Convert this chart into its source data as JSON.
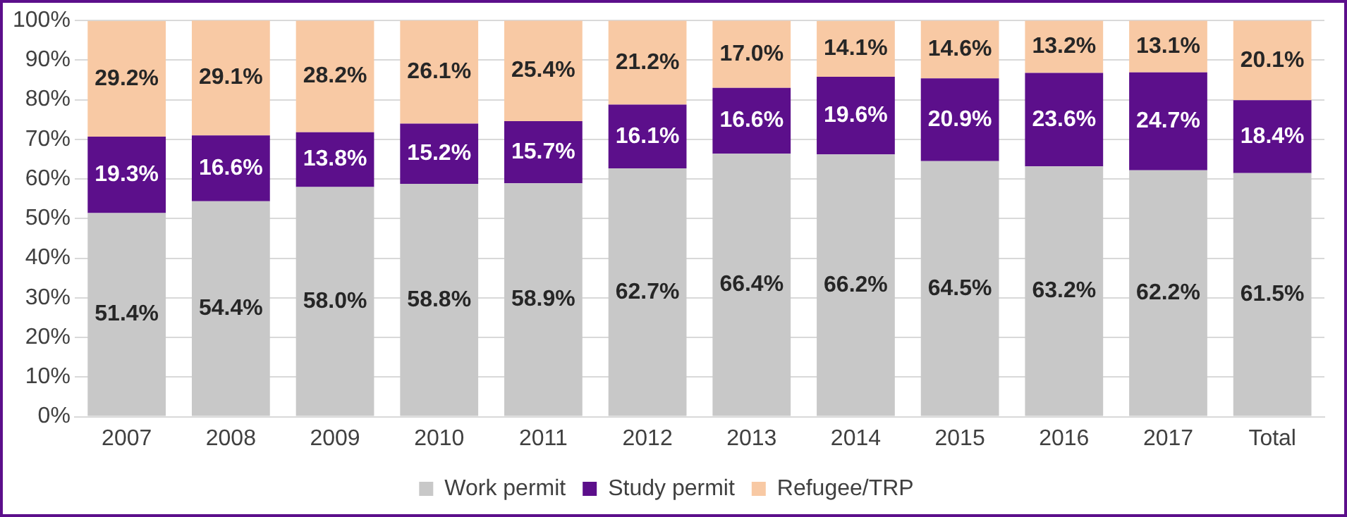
{
  "chart_data": {
    "type": "bar",
    "stacked": true,
    "categories": [
      "2007",
      "2008",
      "2009",
      "2010",
      "2011",
      "2012",
      "2013",
      "2014",
      "2015",
      "2016",
      "2017",
      "Total"
    ],
    "series": [
      {
        "name": "Work permit",
        "color": "#c8c8c8",
        "values": [
          51.4,
          54.4,
          58.0,
          58.8,
          58.9,
          62.7,
          66.4,
          66.2,
          64.5,
          63.2,
          62.2,
          61.5
        ],
        "value_labels": [
          "51.4%",
          "54.4%",
          "58.0%",
          "58.8%",
          "58.9%",
          "62.7%",
          "66.4%",
          "66.2%",
          "64.5%",
          "63.2%",
          "62.2%",
          "61.5%"
        ]
      },
      {
        "name": "Study permit",
        "color": "#5c0f8b",
        "values": [
          19.3,
          16.6,
          13.8,
          15.2,
          15.7,
          16.1,
          16.6,
          19.6,
          20.9,
          23.6,
          24.7,
          18.4
        ],
        "value_labels": [
          "19.3%",
          "16.6%",
          "13.8%",
          "15.2%",
          "15.7%",
          "16.1%",
          "16.6%",
          "19.6%",
          "20.9%",
          "23.6%",
          "24.7%",
          "18.4%"
        ]
      },
      {
        "name": "Refugee/TRP",
        "color": "#f8c9a4",
        "values": [
          29.2,
          29.1,
          28.2,
          26.1,
          25.4,
          21.2,
          17.0,
          14.1,
          14.6,
          13.2,
          13.1,
          20.1
        ],
        "value_labels": [
          "29.2%",
          "29.1%",
          "28.2%",
          "26.1%",
          "25.4%",
          "21.2%",
          "17.0%",
          "14.1%",
          "14.6%",
          "13.2%",
          "13.1%",
          "20.1%"
        ]
      }
    ],
    "ylim": [
      0,
      100
    ],
    "yticks": [
      {
        "value": 0,
        "label": "0%"
      },
      {
        "value": 10,
        "label": "10%"
      },
      {
        "value": 20,
        "label": "20%"
      },
      {
        "value": 30,
        "label": "30%"
      },
      {
        "value": 40,
        "label": "40%"
      },
      {
        "value": 50,
        "label": "50%"
      },
      {
        "value": 60,
        "label": "60%"
      },
      {
        "value": 70,
        "label": "70%"
      },
      {
        "value": 80,
        "label": "80%"
      },
      {
        "value": 90,
        "label": "90%"
      },
      {
        "value": 100,
        "label": "100%"
      }
    ],
    "grid": "y",
    "legend": "bottom"
  }
}
